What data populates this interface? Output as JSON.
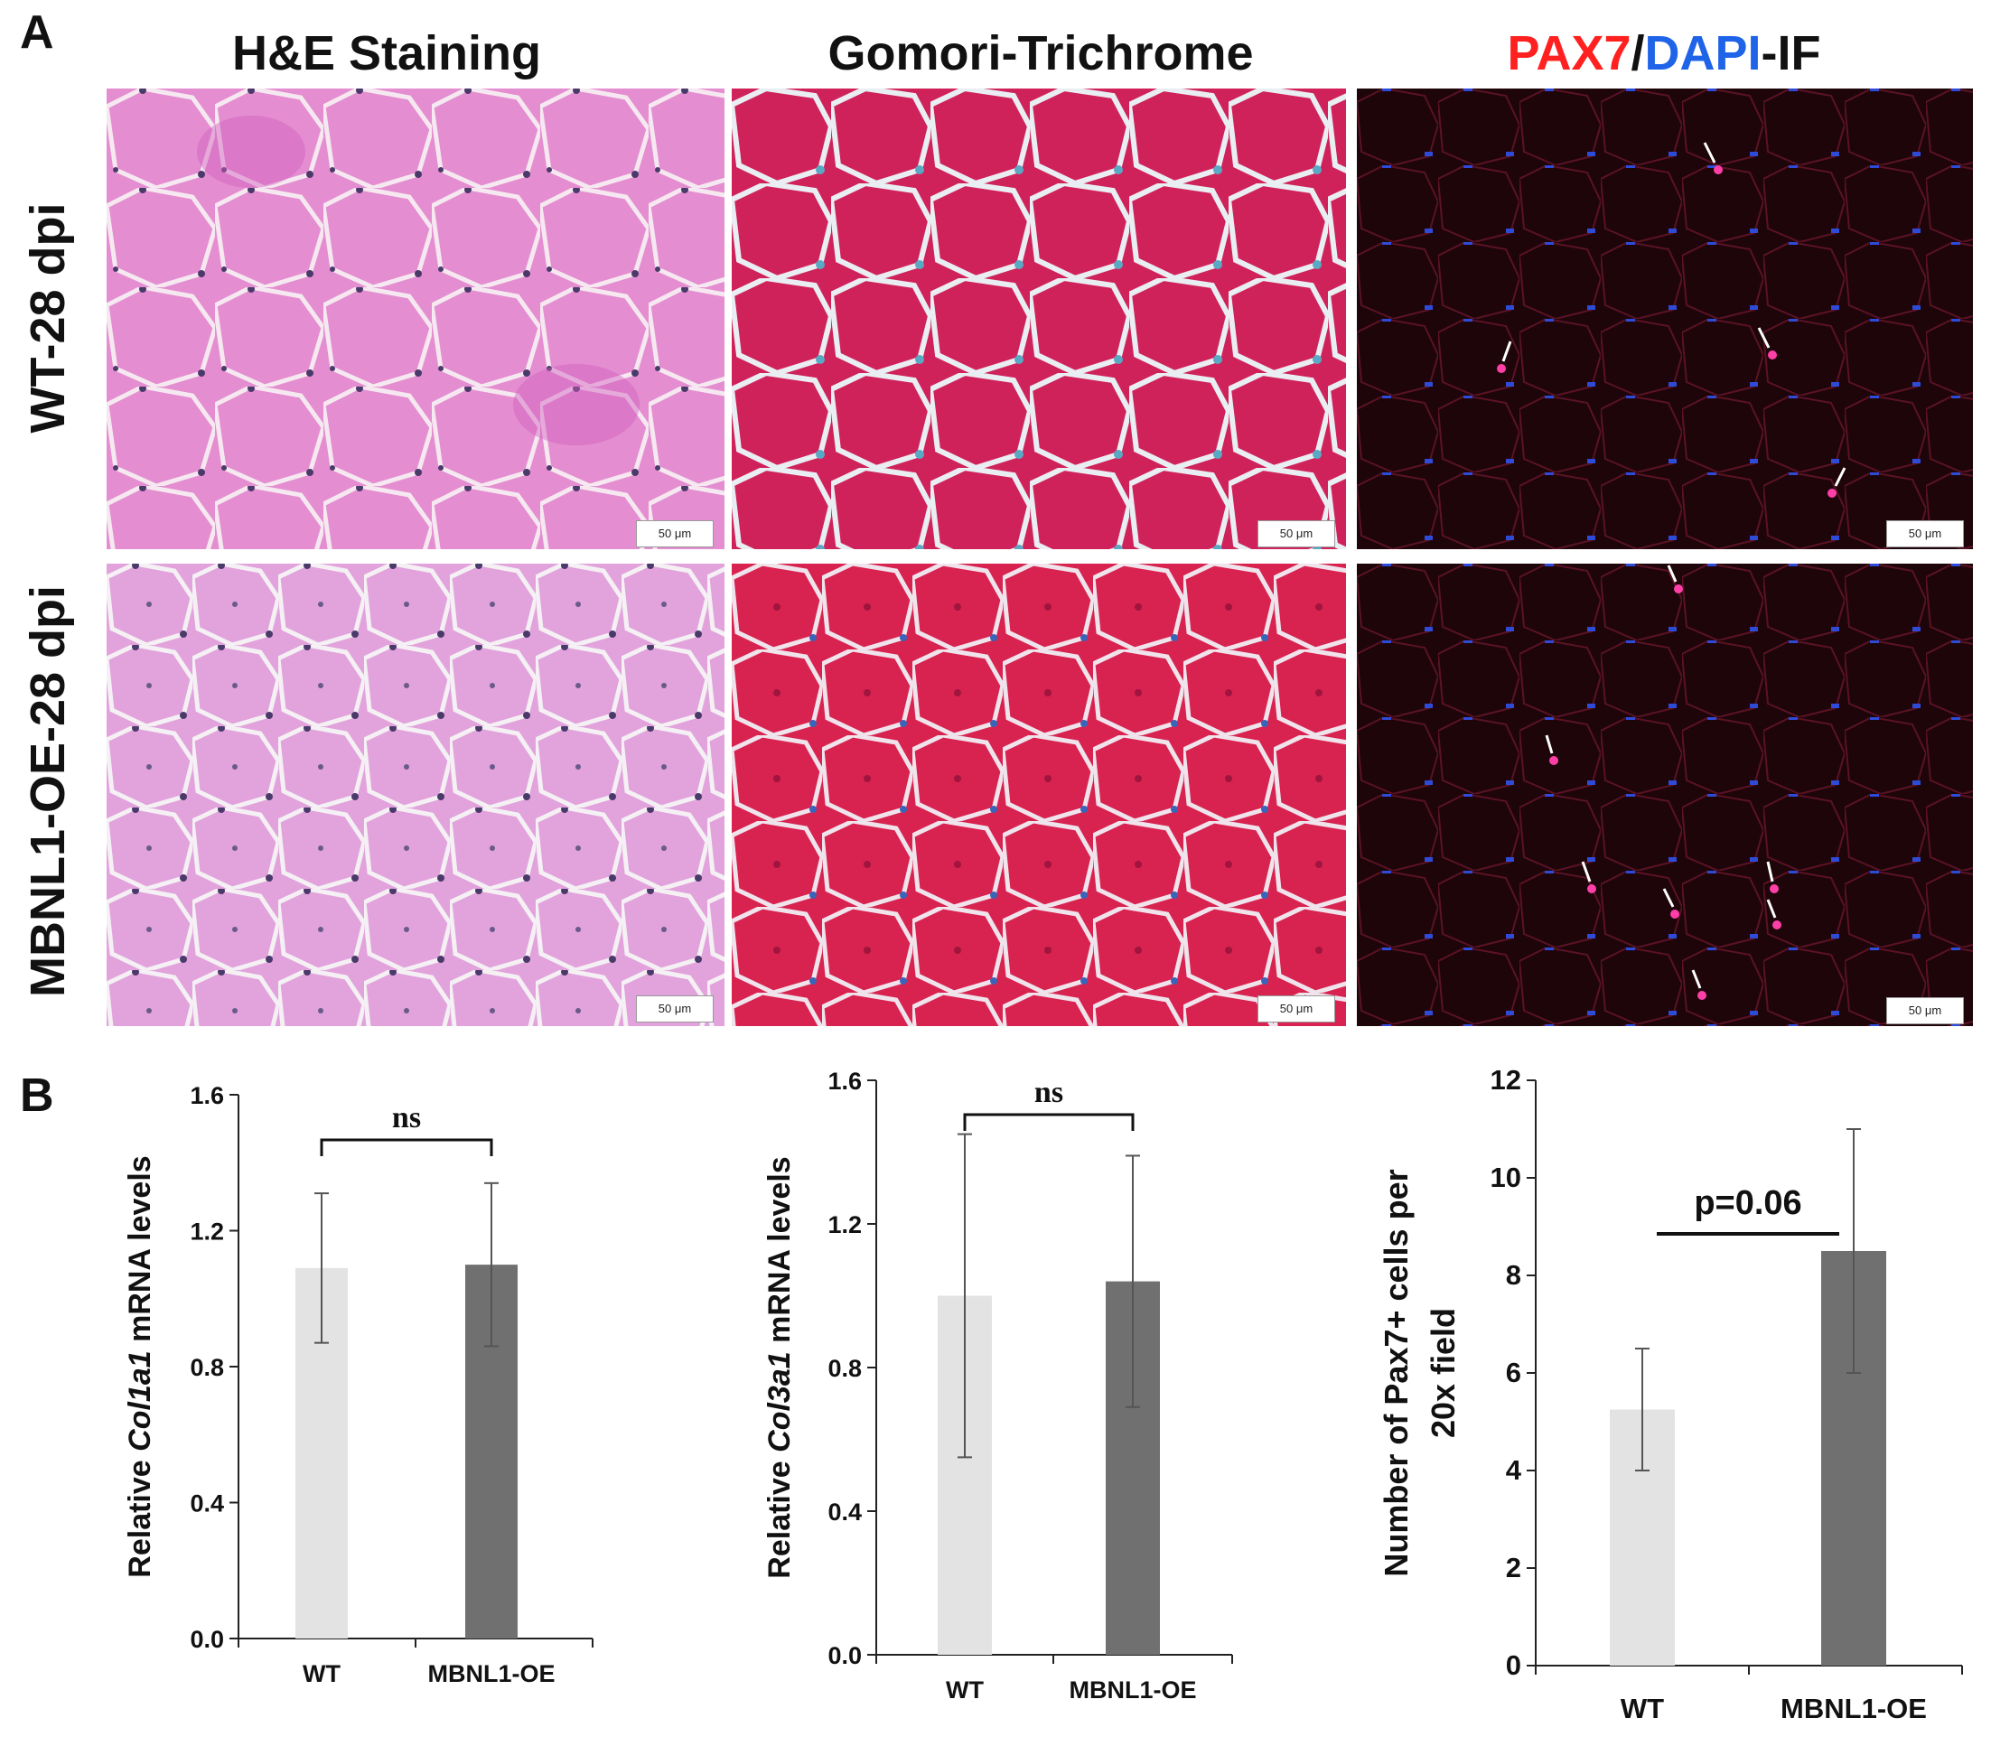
{
  "panel_a": {
    "letter": "A",
    "columns": {
      "he": "H&E Staining",
      "gomori": "Gomori-Trichrome",
      "if_pax7": "PAX7",
      "if_slash": "/",
      "if_dapi": "DAPI",
      "if_suffix": "-IF"
    },
    "rows": {
      "wt": "WT-28 dpi",
      "oe": "MBNL1-OE-28 dpi"
    },
    "scale_bar": "50 μm",
    "colors": {
      "he_bg": "#e38fd1",
      "gomori_bg": "#cf2154",
      "if_bg": "#1c0509",
      "pax7_text": "#ff2020",
      "dapi_text": "#1f63e8"
    }
  },
  "panel_b": {
    "letter": "B"
  },
  "chart_data": [
    {
      "type": "bar",
      "categories": [
        "WT",
        "MBNL1-OE"
      ],
      "values": [
        1.09,
        1.1
      ],
      "errors": [
        0.22,
        0.24
      ],
      "ylabel_prefix": "Relative ",
      "ylabel_gene": "Col1a1",
      "ylabel_suffix": " mRNA levels",
      "ylim": [
        0,
        1.6
      ],
      "ticks": [
        "0.0",
        "0.4",
        "0.8",
        "1.2",
        "1.6"
      ],
      "annotation": "ns",
      "bar_colors": [
        "#e3e3e3",
        "#707070"
      ]
    },
    {
      "type": "bar",
      "categories": [
        "WT",
        "MBNL1-OE"
      ],
      "values": [
        1.0,
        1.04
      ],
      "errors": [
        0.45,
        0.35
      ],
      "ylabel_prefix": "Relative ",
      "ylabel_gene": "Col3a1",
      "ylabel_suffix": " mRNA levels",
      "ylim": [
        0,
        1.6
      ],
      "ticks": [
        "0.0",
        "0.4",
        "0.8",
        "1.2",
        "1.6"
      ],
      "annotation": "ns",
      "bar_colors": [
        "#e3e3e3",
        "#707070"
      ]
    },
    {
      "type": "bar",
      "categories": [
        "WT",
        "MBNL1-OE"
      ],
      "values": [
        5.25,
        8.5
      ],
      "errors": [
        1.25,
        2.5
      ],
      "ylabel_line1": "Number of Pax7+ cells per",
      "ylabel_line2": "20x field",
      "ylim": [
        0,
        12
      ],
      "ticks": [
        "0",
        "2",
        "4",
        "6",
        "8",
        "10",
        "12"
      ],
      "annotation": "p=0.06",
      "bar_colors": [
        "#e3e3e3",
        "#707070"
      ]
    }
  ]
}
